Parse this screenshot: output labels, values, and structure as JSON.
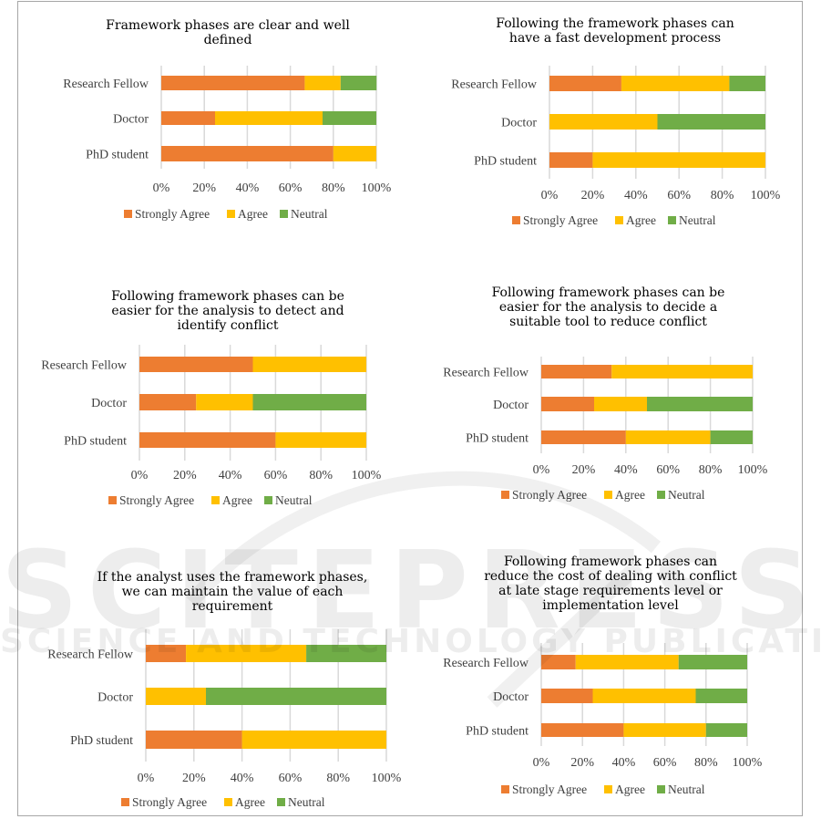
{
  "watermark": {
    "primary": "SCITEPRESS",
    "secondary": "SCIENCE AND TECHNOLOGY PUBLICATIONS"
  },
  "legend": [
    {
      "name": "Strongly Agree",
      "color": "#ED7D31"
    },
    {
      "name": "Agree",
      "color": "#FFC000"
    },
    {
      "name": "Neutral",
      "color": "#70AD47"
    }
  ],
  "chart_data": [
    {
      "type": "bar",
      "orientation": "horizontal",
      "stacked": "100%",
      "title": "Framework phases are clear and well defined",
      "title_lines": [
        "Framework phases are clear and well",
        "defined"
      ],
      "categories": [
        "Research Fellow",
        "Doctor",
        "PhD student"
      ],
      "series": [
        {
          "name": "Strongly Agree",
          "values": [
            66.7,
            25,
            80
          ]
        },
        {
          "name": "Agree",
          "values": [
            16.7,
            50,
            20
          ]
        },
        {
          "name": "Neutral",
          "values": [
            16.7,
            25,
            0
          ]
        }
      ],
      "xticks": [
        "0%",
        "20%",
        "40%",
        "60%",
        "80%",
        "100%"
      ],
      "xlim": [
        0,
        100
      ],
      "grid": true,
      "legend_position": "bottom"
    },
    {
      "type": "bar",
      "orientation": "horizontal",
      "stacked": "100%",
      "title": "Following the framework phases can have a fast development process",
      "title_lines": [
        "Following the framework phases can",
        "have a fast development process"
      ],
      "categories": [
        "Research Fellow",
        "Doctor",
        "PhD student"
      ],
      "series": [
        {
          "name": "Strongly Agree",
          "values": [
            33.3,
            0,
            20
          ]
        },
        {
          "name": "Agree",
          "values": [
            50,
            50,
            80
          ]
        },
        {
          "name": "Neutral",
          "values": [
            16.7,
            50,
            0
          ]
        }
      ],
      "xticks": [
        "0%",
        "20%",
        "40%",
        "60%",
        "80%",
        "100%"
      ],
      "xlim": [
        0,
        100
      ],
      "grid": true,
      "legend_position": "bottom"
    },
    {
      "type": "bar",
      "orientation": "horizontal",
      "stacked": "100%",
      "title": "Following framework phases can be easier for the analysis to detect and identify conflict",
      "title_lines": [
        "Following framework phases can be",
        "easier for the analysis to detect and",
        "identify conflict"
      ],
      "categories": [
        "Research Fellow",
        "Doctor",
        "PhD student"
      ],
      "series": [
        {
          "name": "Strongly Agree",
          "values": [
            50,
            25,
            60
          ]
        },
        {
          "name": "Agree",
          "values": [
            50,
            25,
            40
          ]
        },
        {
          "name": "Neutral",
          "values": [
            0,
            50,
            0
          ]
        }
      ],
      "xticks": [
        "0%",
        "20%",
        "40%",
        "60%",
        "80%",
        "100%"
      ],
      "xlim": [
        0,
        100
      ],
      "grid": true,
      "legend_position": "bottom"
    },
    {
      "type": "bar",
      "orientation": "horizontal",
      "stacked": "100%",
      "title": "Following framework phases can be easier for the analysis to decide a suitable tool to reduce conflict",
      "title_lines": [
        "Following framework phases can be",
        "easier for the analysis to decide a",
        "suitable tool to reduce conflict"
      ],
      "categories": [
        "Research Fellow",
        "Doctor",
        "PhD student"
      ],
      "series": [
        {
          "name": "Strongly Agree",
          "values": [
            33.3,
            25,
            40
          ]
        },
        {
          "name": "Agree",
          "values": [
            66.7,
            25,
            40
          ]
        },
        {
          "name": "Neutral",
          "values": [
            0,
            50,
            20
          ]
        }
      ],
      "xticks": [
        "0%",
        "20%",
        "40%",
        "60%",
        "80%",
        "100%"
      ],
      "xlim": [
        0,
        100
      ],
      "grid": true,
      "legend_position": "bottom"
    },
    {
      "type": "bar",
      "orientation": "horizontal",
      "stacked": "100%",
      "title": "If the analyst uses the framework phases, we can maintain the value of each requirement",
      "title_lines": [
        "If the analyst uses the framework phases,",
        "we can maintain the value of each",
        "requirement"
      ],
      "categories": [
        "Research Fellow",
        "Doctor",
        "PhD student"
      ],
      "series": [
        {
          "name": "Strongly Agree",
          "values": [
            16.7,
            0,
            40
          ]
        },
        {
          "name": "Agree",
          "values": [
            50,
            25,
            60
          ]
        },
        {
          "name": "Neutral",
          "values": [
            33.3,
            75,
            0
          ]
        }
      ],
      "xticks": [
        "0%",
        "20%",
        "40%",
        "60%",
        "80%",
        "100%"
      ],
      "xlim": [
        0,
        100
      ],
      "grid": true,
      "legend_position": "bottom"
    },
    {
      "type": "bar",
      "orientation": "horizontal",
      "stacked": "100%",
      "title": "Following framework phases can reduce the cost of dealing with conflict at late stage requirements level or implementation level",
      "title_lines": [
        "Following framework phases can",
        "reduce the cost of dealing with conflict",
        "at late stage requirements level or",
        "implementation level"
      ],
      "categories": [
        "Research Fellow",
        "Doctor",
        "PhD student"
      ],
      "series": [
        {
          "name": "Strongly Agree",
          "values": [
            16.7,
            25,
            40
          ]
        },
        {
          "name": "Agree",
          "values": [
            50,
            50,
            40
          ]
        },
        {
          "name": "Neutral",
          "values": [
            33.3,
            25,
            20
          ]
        }
      ],
      "xticks": [
        "0%",
        "20%",
        "40%",
        "60%",
        "80%",
        "100%"
      ],
      "xlim": [
        0,
        100
      ],
      "grid": true,
      "legend_position": "bottom"
    }
  ]
}
